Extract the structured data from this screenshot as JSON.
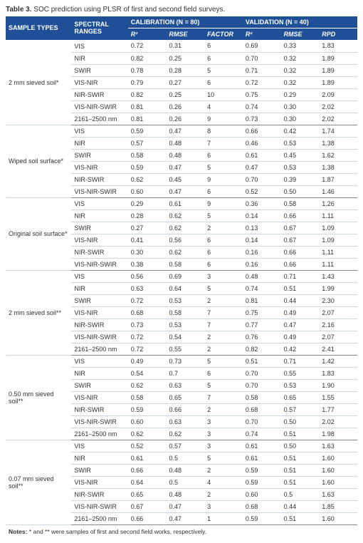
{
  "caption_prefix": "Table 3.",
  "caption_text": "SOC prediction using PLSR of first and second field surveys.",
  "header": {
    "sample_types": "SAMPLE TYPES",
    "spectral_ranges": "SPECTRAL RANGES",
    "calibration": "CALIBRATION (N = 80)",
    "validation": "VALIDATION (N = 40)",
    "r2": "R²",
    "rmse": "RMSE",
    "factor": "FACTOR",
    "rpd": "RPD"
  },
  "colors": {
    "header_bg": "#1f4f96",
    "header_fg": "#ffffff",
    "row_border": "#d0d7e2",
    "group_border": "#888888"
  },
  "groups": [
    {
      "sample": "2 mm sieved soil*",
      "rows": [
        {
          "range": "VIS",
          "cr2": "0.72",
          "crmse": "0.31",
          "factor": "6",
          "vr2": "0.69",
          "vrmse": "0.33",
          "rpd": "1.83"
        },
        {
          "range": "NIR",
          "cr2": "0.82",
          "crmse": "0.25",
          "factor": "6",
          "vr2": "0.70",
          "vrmse": "0.32",
          "rpd": "1.89"
        },
        {
          "range": "SWIR",
          "cr2": "0.78",
          "crmse": "0.28",
          "factor": "5",
          "vr2": "0.71",
          "vrmse": "0.32",
          "rpd": "1.89"
        },
        {
          "range": "VIS-NIR",
          "cr2": "0.79",
          "crmse": "0.27",
          "factor": "6",
          "vr2": "0.72",
          "vrmse": "0.32",
          "rpd": "1.89"
        },
        {
          "range": "NIR-SWIR",
          "cr2": "0.82",
          "crmse": "0.25",
          "factor": "10",
          "vr2": "0.75",
          "vrmse": "0.29",
          "rpd": "2.09"
        },
        {
          "range": "VIS-NIR-SWIR",
          "cr2": "0.81",
          "crmse": "0.26",
          "factor": "4",
          "vr2": "0.74",
          "vrmse": "0.30",
          "rpd": "2.02"
        },
        {
          "range": "2161–2500 nm",
          "cr2": "0.81",
          "crmse": "0.26",
          "factor": "9",
          "vr2": "0.73",
          "vrmse": "0.30",
          "rpd": "2.02"
        }
      ]
    },
    {
      "sample": "Wiped soil surface*",
      "rows": [
        {
          "range": "VIS",
          "cr2": "0.59",
          "crmse": "0.47",
          "factor": "8",
          "vr2": "0.66",
          "vrmse": "0.42",
          "rpd": "1.74"
        },
        {
          "range": "NIR",
          "cr2": "0.57",
          "crmse": "0.48",
          "factor": "7",
          "vr2": "0.46",
          "vrmse": "0.53",
          "rpd": "1.38"
        },
        {
          "range": "SWIR",
          "cr2": "0.58",
          "crmse": "0.48",
          "factor": "6",
          "vr2": "0.61",
          "vrmse": "0.45",
          "rpd": "1.62"
        },
        {
          "range": "VIS-NIR",
          "cr2": "0.59",
          "crmse": "0.47",
          "factor": "5",
          "vr2": "0.47",
          "vrmse": "0.53",
          "rpd": "1.38"
        },
        {
          "range": "NIR-SWIR",
          "cr2": "0.62",
          "crmse": "0.45",
          "factor": "9",
          "vr2": "0.70",
          "vrmse": "0.39",
          "rpd": "1.87"
        },
        {
          "range": "VIS-NIR-SWIR",
          "cr2": "0.60",
          "crmse": "0.47",
          "factor": "6",
          "vr2": "0.52",
          "vrmse": "0.50",
          "rpd": "1.46"
        }
      ]
    },
    {
      "sample": "Original soil surface*",
      "rows": [
        {
          "range": "VIS",
          "cr2": "0.29",
          "crmse": "0.61",
          "factor": "9",
          "vr2": "0.36",
          "vrmse": "0.58",
          "rpd": "1.26"
        },
        {
          "range": "NIR",
          "cr2": "0.28",
          "crmse": "0.62",
          "factor": "5",
          "vr2": "0.14",
          "vrmse": "0.66",
          "rpd": "1.11"
        },
        {
          "range": "SWIR",
          "cr2": "0.27",
          "crmse": "0.62",
          "factor": "2",
          "vr2": "0.13",
          "vrmse": "0.67",
          "rpd": "1.09"
        },
        {
          "range": "VIS-NIR",
          "cr2": "0.41",
          "crmse": "0.56",
          "factor": "6",
          "vr2": "0.14",
          "vrmse": "0.67",
          "rpd": "1.09"
        },
        {
          "range": "NIR-SWIR",
          "cr2": "0.30",
          "crmse": "0.62",
          "factor": "6",
          "vr2": "0.16",
          "vrmse": "0.66",
          "rpd": "1.11"
        },
        {
          "range": "VIS-NIR-SWIR",
          "cr2": "0.38",
          "crmse": "0.58",
          "factor": "6",
          "vr2": "0.16",
          "vrmse": "0.66",
          "rpd": "1.11"
        }
      ]
    },
    {
      "sample": "2 mm sieved soil**",
      "rows": [
        {
          "range": "VIS",
          "cr2": "0.56",
          "crmse": "0.69",
          "factor": "3",
          "vr2": "0.48",
          "vrmse": "0.71",
          "rpd": "1.43"
        },
        {
          "range": "NIR",
          "cr2": "0.63",
          "crmse": "0.64",
          "factor": "5",
          "vr2": "0.74",
          "vrmse": "0.51",
          "rpd": "1.99"
        },
        {
          "range": "SWIR",
          "cr2": "0.72",
          "crmse": "0.53",
          "factor": "2",
          "vr2": "0.81",
          "vrmse": "0.44",
          "rpd": "2.30"
        },
        {
          "range": "VIS-NIR",
          "cr2": "0.68",
          "crmse": "0.58",
          "factor": "7",
          "vr2": "0.75",
          "vrmse": "0.49",
          "rpd": "2.07"
        },
        {
          "range": "NIR-SWIR",
          "cr2": "0.73",
          "crmse": "0.53",
          "factor": "7",
          "vr2": "0.77",
          "vrmse": "0.47",
          "rpd": "2.16"
        },
        {
          "range": "VIS-NIR-SWIR",
          "cr2": "0.72",
          "crmse": "0.54",
          "factor": "2",
          "vr2": "0.76",
          "vrmse": "0.49",
          "rpd": "2.07"
        },
        {
          "range": "2161–2500 nm",
          "cr2": "0.72",
          "crmse": "0.55",
          "factor": "2",
          "vr2": "0.82",
          "vrmse": "0.42",
          "rpd": "2.41"
        }
      ]
    },
    {
      "sample": "0.50 mm sieved soil**",
      "rows": [
        {
          "range": "VIS",
          "cr2": "0.49",
          "crmse": "0.73",
          "factor": "5",
          "vr2": "0.51",
          "vrmse": "0.71",
          "rpd": "1.42"
        },
        {
          "range": "NIR",
          "cr2": "0.54",
          "crmse": "0.7",
          "factor": "6",
          "vr2": "0.70",
          "vrmse": "0.55",
          "rpd": "1.83"
        },
        {
          "range": "SWIR",
          "cr2": "0.62",
          "crmse": "0.63",
          "factor": "5",
          "vr2": "0.70",
          "vrmse": "0.53",
          "rpd": "1.90"
        },
        {
          "range": "VIS-NIR",
          "cr2": "0.58",
          "crmse": "0.65",
          "factor": "7",
          "vr2": "0.58",
          "vrmse": "0.65",
          "rpd": "1.55"
        },
        {
          "range": "NIR-SWIR",
          "cr2": "0.59",
          "crmse": "0.66",
          "factor": "2",
          "vr2": "0.68",
          "vrmse": "0.57",
          "rpd": "1.77"
        },
        {
          "range": "VIS-NIR-SWIR",
          "cr2": "0.60",
          "crmse": "0.63",
          "factor": "3",
          "vr2": "0.70",
          "vrmse": "0.50",
          "rpd": "2.02"
        },
        {
          "range": "2161–2500 nm",
          "cr2": "0.62",
          "crmse": "0.62",
          "factor": "3",
          "vr2": "0.74",
          "vrmse": "0.51",
          "rpd": "1.98"
        }
      ]
    },
    {
      "sample": "0.07 mm sieved soil**",
      "rows": [
        {
          "range": "VIS",
          "cr2": "0.52",
          "crmse": "0.57",
          "factor": "3",
          "vr2": "0.61",
          "vrmse": "0.50",
          "rpd": "1.63"
        },
        {
          "range": "NIR",
          "cr2": "0.61",
          "crmse": "0.5",
          "factor": "5",
          "vr2": "0.61",
          "vrmse": "0.51",
          "rpd": "1.60"
        },
        {
          "range": "SWIR",
          "cr2": "0.66",
          "crmse": "0.48",
          "factor": "2",
          "vr2": "0.59",
          "vrmse": "0.51",
          "rpd": "1.60"
        },
        {
          "range": "VIS-NIR",
          "cr2": "0.64",
          "crmse": "0.5",
          "factor": "4",
          "vr2": "0.59",
          "vrmse": "0.51",
          "rpd": "1.60"
        },
        {
          "range": "NIR-SWIR",
          "cr2": "0.65",
          "crmse": "0.48",
          "factor": "2",
          "vr2": "0.60",
          "vrmse": "0.5",
          "rpd": "1.63"
        },
        {
          "range": "VIS-NIR-SWIR",
          "cr2": "0.67",
          "crmse": "0.47",
          "factor": "3",
          "vr2": "0.68",
          "vrmse": "0.44",
          "rpd": "1.85"
        },
        {
          "range": "2161–2500 nm",
          "cr2": "0.66",
          "crmse": "0.47",
          "factor": "1",
          "vr2": "0.59",
          "vrmse": "0.51",
          "rpd": "1.60"
        }
      ]
    }
  ],
  "footnote_prefix": "Notes:",
  "footnote_text": "* and ** were samples of first and second field works, respectively."
}
